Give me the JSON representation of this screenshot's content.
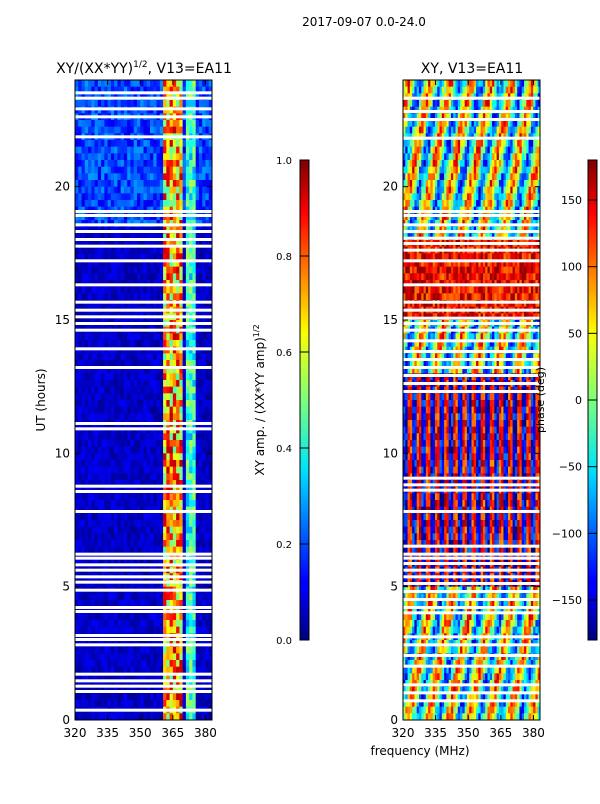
{
  "figure_title": "2017-09-07 0.0-24.0",
  "common_xlabel": "frequency (MHz)",
  "chart_data": [
    {
      "type": "heatmap",
      "title": "XY/(XX*YY)",
      "title_exponent": "1/2",
      "title_suffix": ", V13=EA11",
      "xlabel": "frequency (MHz)",
      "ylabel": "UT (hours)",
      "xlim": [
        320,
        383
      ],
      "ylim": [
        0,
        24
      ],
      "xticks": [
        320,
        335,
        350,
        365,
        380
      ],
      "yticks": [
        0,
        5,
        10,
        15,
        20
      ],
      "colorbar": {
        "label": "XY amp. / (XX*YY amp)",
        "label_exponent": "1/2",
        "range": [
          0.0,
          1.0
        ],
        "ticks": [
          "0.0",
          "0.2",
          "0.4",
          "0.6",
          "0.8",
          "1.0"
        ]
      },
      "high_band_MHz": [
        361,
        369
      ],
      "mid_band_MHz": [
        371,
        376
      ],
      "gaps_hours": [
        0.35,
        1.05,
        1.25,
        1.45,
        1.7,
        2.8,
        3.0,
        3.15,
        4.05,
        4.2,
        4.85,
        5.15,
        5.35,
        5.6,
        5.8,
        6.05,
        6.2,
        7.8,
        8.55,
        8.75,
        10.9,
        11.1,
        13.2,
        13.9,
        14.6,
        14.85,
        15.1,
        15.35,
        15.65,
        16.3,
        17.2,
        17.75,
        18.0,
        18.3,
        18.55,
        18.9,
        19.05,
        21.85,
        22.6,
        22.9,
        23.3,
        23.5
      ]
    },
    {
      "type": "heatmap",
      "title": "XY, V13=EA11",
      "xlabel": "frequency (MHz)",
      "ylabel": "",
      "xlim": [
        320,
        383
      ],
      "ylim": [
        0,
        24
      ],
      "xticks": [
        320,
        335,
        350,
        365,
        380
      ],
      "yticks": [
        0,
        5,
        10,
        15,
        20
      ],
      "colorbar": {
        "label": "phase (deg)",
        "range": [
          -180,
          180
        ],
        "ticks": [
          "−150",
          "−100",
          "−50",
          "0",
          "50",
          "100",
          "150"
        ]
      },
      "gaps_hours": [
        0.7,
        1.0,
        1.3,
        2.0,
        2.4,
        2.8,
        3.1,
        4.0,
        4.2,
        4.5,
        4.8,
        5.1,
        5.35,
        5.6,
        5.85,
        6.05,
        6.2,
        6.5,
        7.8,
        8.6,
        8.8,
        9.05,
        12.3,
        12.6,
        12.9,
        13.2,
        13.5,
        13.8,
        14.2,
        14.6,
        14.85,
        15.05,
        15.35,
        15.65,
        16.3,
        17.2,
        17.6,
        17.85,
        18.05,
        18.3,
        18.55,
        18.9,
        19.05,
        21.8,
        22.5,
        22.8,
        23.3
      ]
    }
  ]
}
